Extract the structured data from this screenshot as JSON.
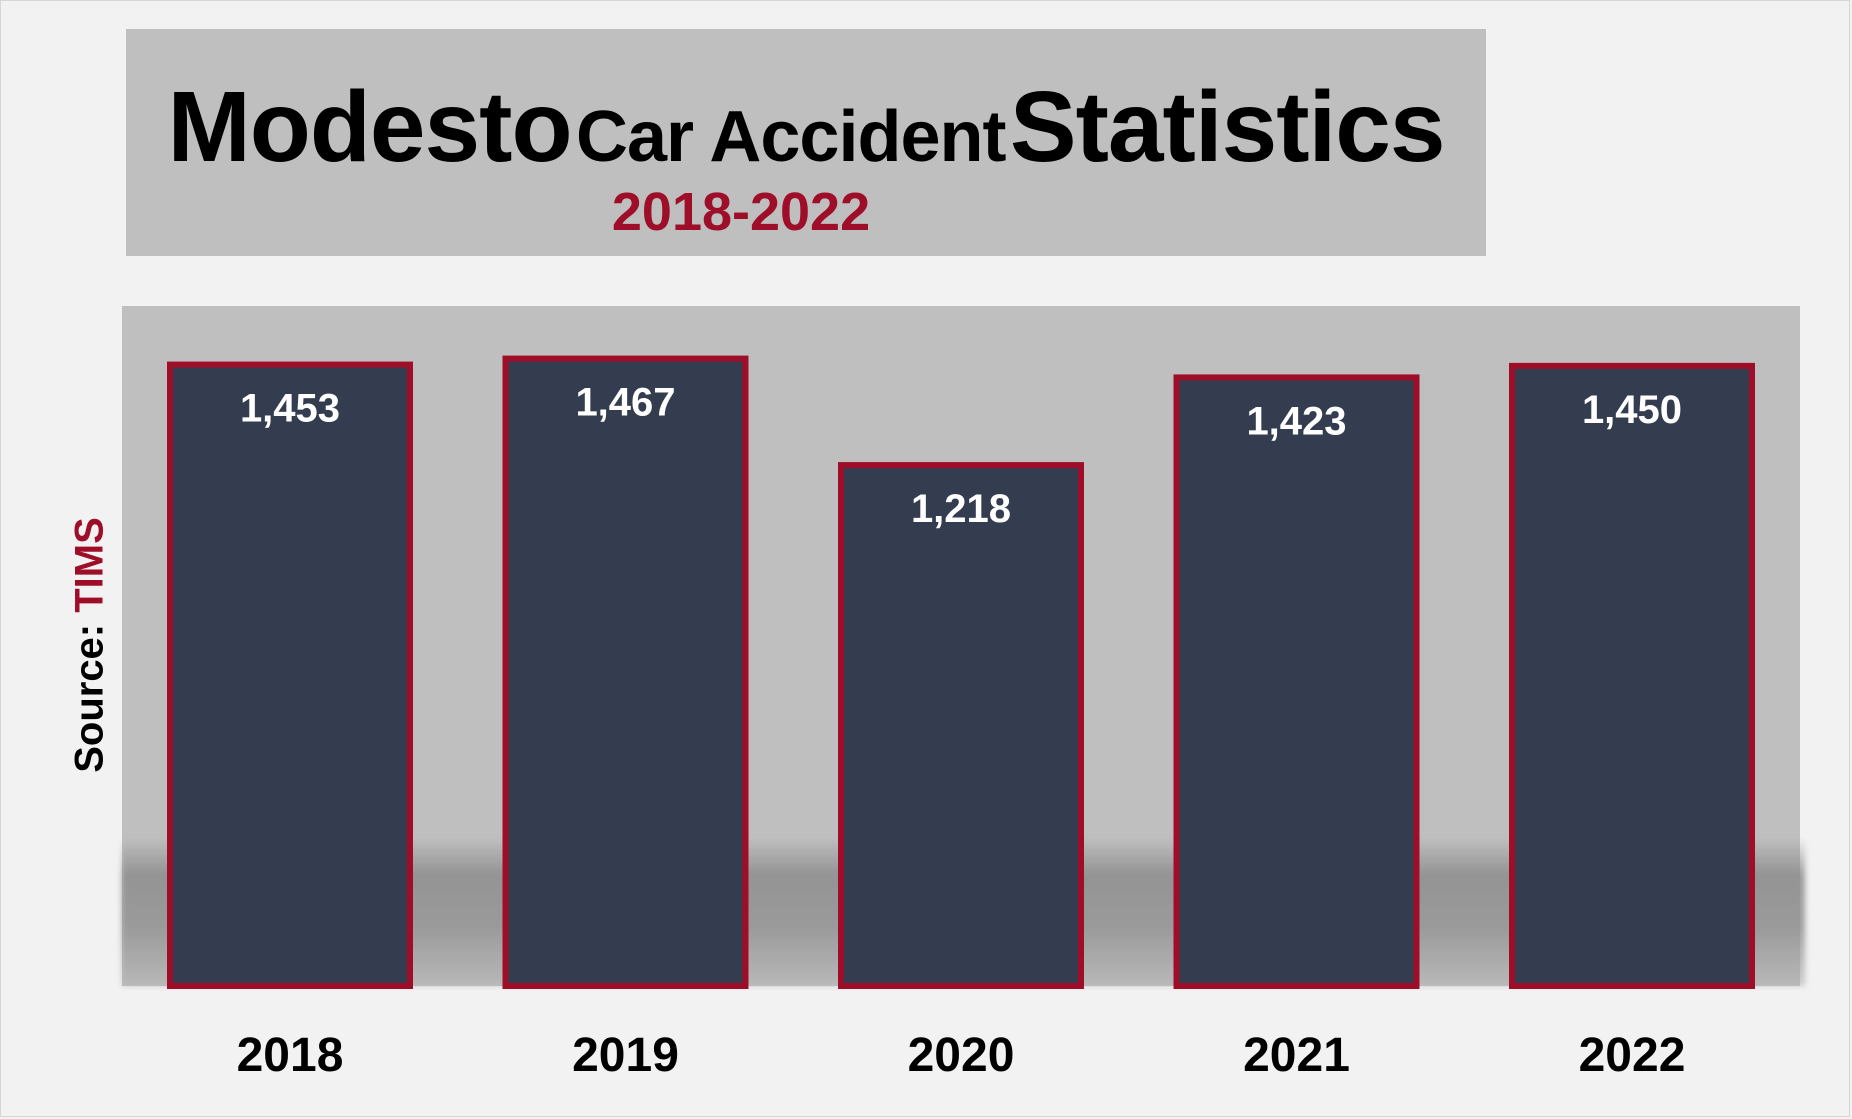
{
  "title": {
    "part1": "Modesto",
    "part2": "Car Accident",
    "part3": "Statistics",
    "subtitle": "2018-2022"
  },
  "source": {
    "prefix": "Source: ",
    "name": "TIMS"
  },
  "colors": {
    "bar_fill": "#333d4f",
    "bar_border": "#9e0e28",
    "accent": "#9e0e28",
    "panel": "#bfbfbf",
    "background": "#f2f2f2"
  },
  "chart_data": {
    "type": "bar",
    "title": "Modesto Car Accident Statistics",
    "subtitle": "2018-2022",
    "categories": [
      "2018",
      "2019",
      "2020",
      "2021",
      "2022"
    ],
    "values": [
      1453,
      1467,
      1218,
      1423,
      1450
    ],
    "value_labels": [
      "1,453",
      "1,467",
      "1,218",
      "1,423",
      "1,450"
    ],
    "xlabel": "",
    "ylabel": "",
    "ylim": [
      0,
      1590
    ],
    "grid": false,
    "legend": "none",
    "source": "Source: TIMS"
  }
}
